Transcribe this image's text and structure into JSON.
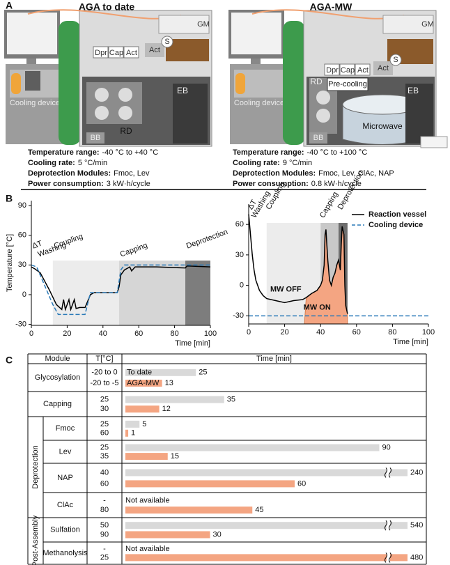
{
  "panel_a": {
    "label": "A",
    "left": {
      "title": "AGA to date",
      "labels": [
        "GM",
        "Dpr",
        "Cap",
        "Act",
        "Act",
        "S",
        "RD",
        "EB",
        "BB",
        "Cooling device"
      ],
      "specs": [
        {
          "name": "Temperature range:",
          "value": "-40 °C to +40 °C"
        },
        {
          "name": "Cooling rate:",
          "value": "5 °C/min"
        },
        {
          "name": "Deprotection Modules:",
          "value": "Fmoc, Lev"
        },
        {
          "name": "Power consumption:",
          "value": "3 kW·h/cycle"
        }
      ]
    },
    "right": {
      "title": "AGA-MW",
      "labels": [
        "GM",
        "Dpr",
        "Cap",
        "Act",
        "Act",
        "S",
        "RD",
        "Pre-cooling",
        "Microwave",
        "EB",
        "BB",
        "Cooling device"
      ],
      "specs": [
        {
          "name": "Temperature range:",
          "value": "-40 °C to +100 °C"
        },
        {
          "name": "Cooling rate:",
          "value": "9 °C/min"
        },
        {
          "name": "Deprotection Modules:",
          "value": "Fmoc, Lev, ClAc, NAP"
        },
        {
          "name": "Power consumption:",
          "value": "0.8 kW·h/cycle"
        }
      ]
    }
  },
  "panel_b": {
    "label": "B"
  },
  "panel_c": {
    "label": "C"
  },
  "chart_data": [
    {
      "type": "line",
      "ylabel": "Temperature [°C]",
      "xlabel": "Time [min]",
      "xlim": [
        0,
        100
      ],
      "xticks": [
        0,
        20,
        40,
        60,
        80,
        100
      ],
      "ylim": [
        -31,
        95
      ],
      "yticks": [
        -30,
        0,
        30,
        60,
        90
      ],
      "phases": [
        {
          "label": "ΔT",
          "start": 0,
          "end": 3
        },
        {
          "label": "Washing",
          "start": 3,
          "end": 12
        },
        {
          "label": "Coupling",
          "start": 12,
          "end": 49,
          "color": "#ececec"
        },
        {
          "label": "Capping",
          "start": 49,
          "end": 86,
          "color": "#d6d6d6"
        },
        {
          "label": "Deprotection",
          "start": 86,
          "end": 100,
          "color": "#7d7d7d"
        }
      ],
      "series": [
        {
          "color": "#000000",
          "x": [
            0,
            2,
            5,
            10,
            14,
            17,
            18,
            19,
            21,
            22,
            24,
            25,
            27,
            30,
            33,
            35,
            48,
            49,
            50,
            52,
            55,
            56,
            58,
            70,
            86,
            87,
            100
          ],
          "values": [
            28,
            26,
            22,
            5,
            -10,
            -15,
            -5,
            -15,
            -5,
            -15,
            -5,
            -14,
            -13,
            -13,
            0,
            2,
            2,
            8,
            20,
            25,
            28,
            24,
            28,
            28,
            27,
            29,
            28
          ]
        },
        {
          "color": "#2a7ab8",
          "dash": true,
          "x": [
            0,
            3,
            12,
            15,
            30,
            33,
            48,
            50,
            52,
            100
          ],
          "values": [
            30,
            28,
            -10,
            -20,
            -20,
            2,
            2,
            25,
            30,
            30
          ]
        }
      ]
    },
    {
      "type": "line",
      "xlabel": "Time [min]",
      "xlim": [
        0,
        100
      ],
      "xticks": [
        0,
        20,
        40,
        60,
        80,
        100
      ],
      "ylim": [
        -38,
        80
      ],
      "yticks": [
        -30,
        0,
        30,
        60
      ],
      "phases": [
        {
          "label": "ΔT",
          "start": 0,
          "end": 2
        },
        {
          "label": "Washing",
          "start": 2,
          "end": 10
        },
        {
          "label": "Coupling",
          "start": 10,
          "end": 40,
          "color": "#ececec"
        },
        {
          "label": "Capping",
          "start": 40,
          "end": 50,
          "color": "#c8c8c8"
        },
        {
          "label": "Deprotection",
          "start": 50,
          "end": 55,
          "color": "#6e6e6e"
        }
      ],
      "mw_on": {
        "label": "MW ON",
        "start": 31,
        "end": 56,
        "color": "#f4a582"
      },
      "annotations": [
        "MW OFF"
      ],
      "legend": "upper right",
      "series": [
        {
          "name": "Reaction vessel",
          "color": "#000000",
          "x": [
            0,
            1,
            2,
            3,
            4,
            6,
            8,
            10,
            15,
            20,
            25,
            30,
            32,
            35,
            38,
            40,
            41,
            42,
            42.5,
            43,
            44,
            45,
            46,
            47,
            48,
            49,
            50,
            51,
            51.5,
            52,
            53,
            53.5,
            54,
            55
          ],
          "values": [
            70,
            50,
            30,
            15,
            5,
            -5,
            -10,
            -13,
            -15,
            -17,
            -15,
            -14,
            -12,
            -8,
            -5,
            0,
            5,
            20,
            50,
            55,
            25,
            5,
            0,
            8,
            12,
            20,
            25,
            15,
            40,
            58,
            50,
            0,
            -20,
            -28
          ]
        },
        {
          "name": "Cooling device",
          "color": "#2a7ab8",
          "dash": true,
          "x": [
            0,
            100
          ],
          "values": [
            -30,
            -30
          ]
        }
      ]
    },
    {
      "type": "bar-table",
      "headers": [
        "Module",
        "T[°C]",
        "Time [min]"
      ],
      "xlim": [
        0,
        100
      ],
      "axis_break": true,
      "missing_label": "Not available",
      "series": [
        {
          "name": "To date",
          "color": "#d9d9d9"
        },
        {
          "name": "AGA-MW",
          "color": "#f4a582"
        }
      ],
      "sections": [
        {
          "rows": [
            {
              "module": "Glycosylation",
              "temps": [
                "-20 to 0",
                "-20 to -5"
              ],
              "values": [
                25,
                13
              ]
            },
            {
              "module": "Capping",
              "temps": [
                "25",
                "30"
              ],
              "values": [
                35,
                12
              ]
            }
          ]
        },
        {
          "label": "Deprotection",
          "rows": [
            {
              "module": "Fmoc",
              "temps": [
                "25",
                "60"
              ],
              "values": [
                5,
                1
              ]
            },
            {
              "module": "Lev",
              "temps": [
                "25",
                "35"
              ],
              "values": [
                90,
                15
              ]
            },
            {
              "module": "NAP",
              "temps": [
                "40",
                "60"
              ],
              "values": [
                240,
                60
              ]
            },
            {
              "module": "ClAc",
              "temps": [
                "-",
                "80"
              ],
              "values": [
                null,
                45
              ]
            }
          ]
        },
        {
          "label": "Post-Assembly",
          "rows": [
            {
              "module": "Sulfation",
              "temps": [
                "50",
                "90"
              ],
              "values": [
                540,
                30
              ]
            },
            {
              "module": "Methanolysis",
              "temps": [
                "-",
                "25"
              ],
              "values": [
                null,
                480
              ]
            }
          ]
        }
      ]
    }
  ]
}
